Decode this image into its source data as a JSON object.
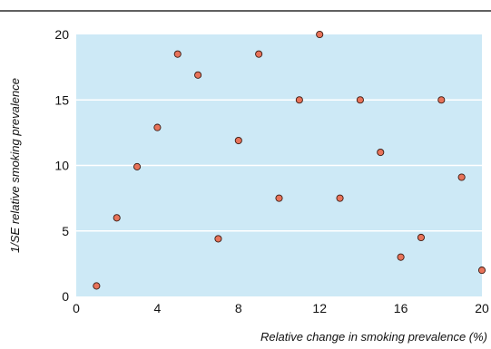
{
  "chart_data": {
    "type": "scatter",
    "title": "",
    "xlabel": "Relative change in smoking prevalence (%)",
    "ylabel": "1/SE relative smoking prevalence",
    "xlim": [
      0,
      20
    ],
    "ylim": [
      0,
      20
    ],
    "xticks": [
      0,
      4,
      8,
      12,
      16,
      20
    ],
    "yticks": [
      0,
      5,
      10,
      15,
      20
    ],
    "grid": "horizontal",
    "legend": "none",
    "colors": {
      "plot_background": "#cde9f6",
      "gridline": "#ffffff",
      "point_fill": "#e8735a",
      "point_stroke": "#3a1a12",
      "top_rule": "#000000"
    },
    "points": [
      {
        "x": 1,
        "y": 0.8
      },
      {
        "x": 2,
        "y": 6
      },
      {
        "x": 3,
        "y": 9.9
      },
      {
        "x": 4,
        "y": 12.9
      },
      {
        "x": 5,
        "y": 18.5
      },
      {
        "x": 6,
        "y": 16.9
      },
      {
        "x": 7,
        "y": 4.4
      },
      {
        "x": 8,
        "y": 11.9
      },
      {
        "x": 9,
        "y": 18.5
      },
      {
        "x": 10,
        "y": 7.5
      },
      {
        "x": 11,
        "y": 15
      },
      {
        "x": 12,
        "y": 20
      },
      {
        "x": 13,
        "y": 7.5
      },
      {
        "x": 14,
        "y": 15
      },
      {
        "x": 15,
        "y": 11
      },
      {
        "x": 16,
        "y": 3
      },
      {
        "x": 17,
        "y": 4.5
      },
      {
        "x": 18,
        "y": 15
      },
      {
        "x": 19,
        "y": 9.1
      },
      {
        "x": 20,
        "y": 2
      }
    ]
  }
}
